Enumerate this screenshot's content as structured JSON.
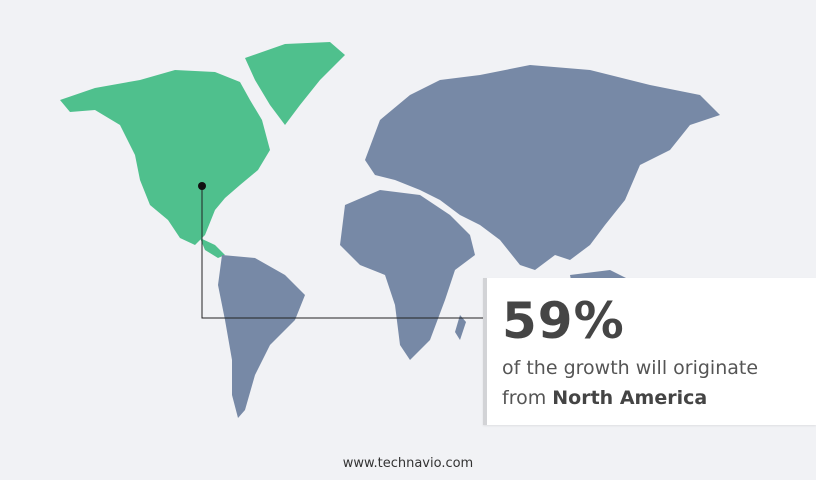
{
  "callout": {
    "value": "59%",
    "line1": "of the growth will originate",
    "line2_prefix": "from ",
    "region": "North America"
  },
  "footer": "www.technavio.com",
  "colors": {
    "highlight_region": "#4fc08d",
    "other_regions": "#7789a6",
    "background": "#f1f2f5"
  },
  "highlighted_region": "North America"
}
